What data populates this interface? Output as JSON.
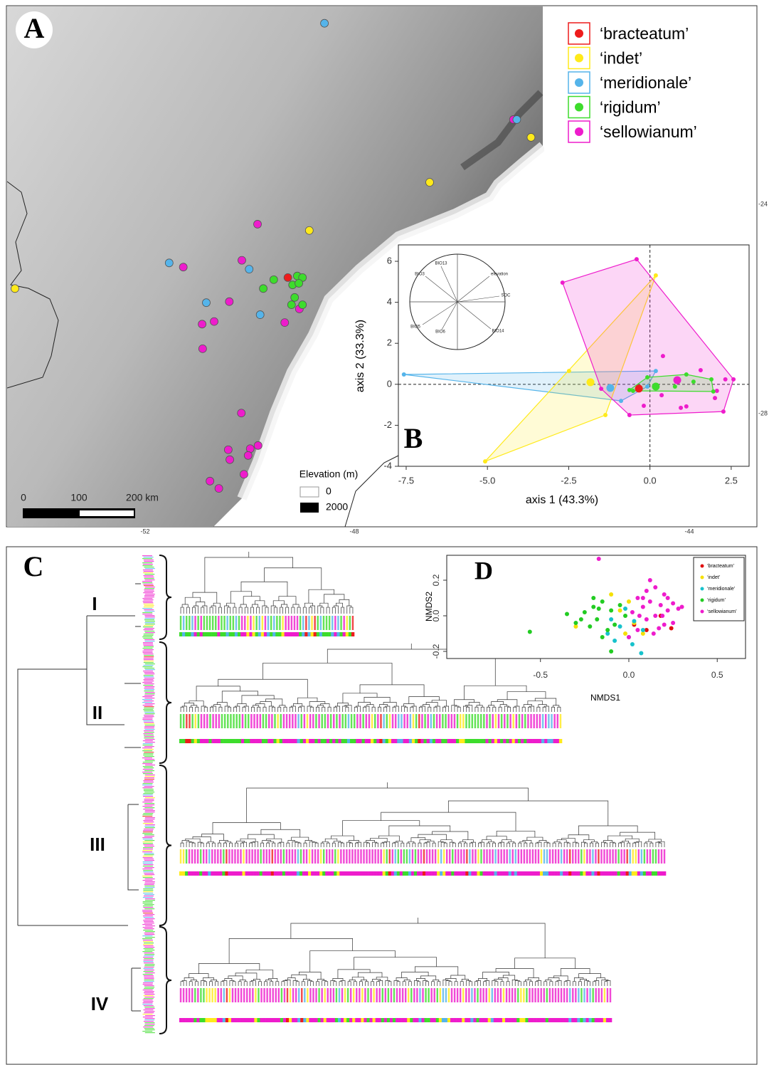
{
  "map": {
    "label": "A",
    "series": [
      {
        "name": "‘bracteatum’",
        "color": "#ee1c1c",
        "lon": [
          -49.27
        ],
        "lat": [
          -25.4
        ]
      },
      {
        "name": "‘indet’",
        "color": "#ffea1a",
        "lon": [
          -45.89,
          -47.1,
          -48.86,
          -54.49
        ],
        "lat": [
          -22.72,
          -23.58,
          -24.5,
          -25.61
        ]
      },
      {
        "name": "‘meridionale’",
        "color": "#55b4ea",
        "lon": [
          -48.57,
          -46.06,
          -51.54,
          -50.01,
          -50.83,
          -49.8
        ],
        "lat": [
          -20.54,
          -22.38,
          -25.12,
          -25.24,
          -25.88,
          -26.11
        ]
      },
      {
        "name": "‘rigidum’",
        "color": "#3ddc2c",
        "lon": [
          -49.54,
          -49.09,
          -48.99,
          -49.18,
          -49.06,
          -49.74,
          -49.14,
          -49.2,
          -48.99
        ],
        "lat": [
          -25.44,
          -25.37,
          -25.4,
          -25.54,
          -25.51,
          -25.61,
          -25.78,
          -25.92,
          -25.92
        ]
      },
      {
        "name": "‘sellowianum’",
        "color": "#ee1ccc",
        "lon": [
          -46.1,
          -49.85,
          -51.27,
          -50.15,
          -50.39,
          -50.68,
          -50.91,
          -49.33,
          -49.05,
          -50.9,
          -50.16,
          -50.41,
          -50.38,
          -49.99,
          -49.84,
          -50.03,
          -50.11,
          -50.76,
          -50.59
        ],
        "lat": [
          -22.38,
          -24.38,
          -25.2,
          -25.07,
          -25.86,
          -26.24,
          -26.29,
          -26.26,
          -26.0,
          -26.76,
          -27.99,
          -28.69,
          -28.88,
          -28.67,
          -28.61,
          -28.8,
          -29.16,
          -29.29,
          -29.43
        ]
      }
    ],
    "scale_labels": [
      "0",
      "100",
      "200 km"
    ],
    "elevation_title": "Elevation (m)",
    "elevation_labels": [
      "0",
      "2000"
    ],
    "lat_ticks": [
      -24,
      -28
    ],
    "lon_ticks": [
      -52,
      -48,
      -44
    ]
  },
  "chart_data": [
    {
      "type": "scatter",
      "label": "B",
      "xlabel": "axis 1 (43.3%)",
      "ylabel": "axis 2 (33.3%)",
      "xlim": [
        -7.74,
        3.05
      ],
      "ylim": [
        -4,
        6.8
      ],
      "xticks": [
        -7.5,
        {
          "value": -5,
          "label": "-5.0"
        },
        -2.5,
        {
          "value": 0,
          "label": "0.0"
        },
        2.5
      ],
      "yticks": [
        -4,
        -2,
        0,
        2,
        4,
        6
      ],
      "biplot_labels": [
        "BIO13",
        "BIO3",
        "elevation",
        "SOC",
        "BIO5",
        "BIO6",
        "BIO14"
      ],
      "series": [
        {
          "name": "‘meridionale’",
          "color": "#55b4ea",
          "x": [
            -7.57,
            0.18,
            -0.89,
            -0.37,
            -0.08
          ],
          "y": [
            0.48,
            0.65,
            -0.81,
            -0.28,
            -0.11
          ],
          "centroid": [
            -1.22,
            -0.18
          ]
        },
        {
          "name": "‘indet’",
          "color": "#ffea1a",
          "x": [
            0.18,
            -5.07,
            -1.37,
            -2.49
          ],
          "y": [
            5.31,
            -3.76,
            -1.5,
            0.65
          ],
          "centroid": [
            -1.83,
            0.1
          ]
        },
        {
          "name": "‘sellowianum’",
          "color": "#ee1ccc",
          "x": [
            -0.41,
            -2.69,
            2.57,
            2.26,
            -0.63,
            0.4,
            -1.5,
            0.95,
            1.12,
            2.32,
            2.06,
            0.36,
            -0.19,
            1.56,
            2.0
          ],
          "y": [
            6.1,
            4.96,
            0.24,
            -1.33,
            -1.5,
            1.38,
            -0.22,
            -1.15,
            -1.08,
            0.24,
            -0.32,
            -0.53,
            -1.05,
            0.69,
            -0.67
          ],
          "centroid": [
            0.84,
            0.2
          ]
        },
        {
          "name": "‘rigidum’",
          "color": "#3ddc2c",
          "x": [
            1.89,
            0.18,
            1.12,
            0.77,
            1.34,
            -0.52,
            -0.08,
            -0.63,
            1.95
          ],
          "y": [
            0.24,
            -0.11,
            0.48,
            -0.11,
            0.13,
            -0.32,
            0.34,
            -0.28,
            -0.35
          ],
          "centroid": [
            0.18,
            -0.11
          ]
        },
        {
          "name": "‘bracteatum’",
          "color": "#ee1c1c",
          "x": [],
          "y": [],
          "centroid": [
            -0.34,
            -0.21
          ]
        }
      ]
    },
    {
      "type": "scatter",
      "label": "D",
      "xlabel": "NMDS1",
      "ylabel": "NMDS2",
      "xlim": [
        -1.03,
        0.66
      ],
      "ylim": [
        -0.24,
        0.34
      ],
      "xticks": [
        -0.5,
        {
          "value": 0,
          "label": "0.0"
        },
        0.5
      ],
      "yticks": [
        -0.2,
        {
          "value": 0,
          "label": "0.0"
        },
        0.2
      ],
      "legend": "upper right",
      "series": [
        {
          "name": "‘bracteatum’",
          "color": "#e01010",
          "x": [
            0.03,
            0.1,
            0.18,
            0.24
          ],
          "y": [
            -0.05,
            -0.08,
            0.0,
            -0.07
          ]
        },
        {
          "name": "‘indet’",
          "color": "#f5e000",
          "x": [
            -0.3,
            -0.1,
            -0.05,
            0.0,
            0.03,
            -0.02,
            0.08
          ],
          "y": [
            -0.06,
            0.12,
            0.03,
            0.08,
            -0.04,
            -0.1,
            -0.1
          ]
        },
        {
          "name": "‘meridionale’",
          "color": "#17c2cc",
          "x": [
            -0.12,
            -0.08,
            -0.05,
            0.0,
            0.03,
            -0.1,
            0.07,
            -0.02,
            0.08,
            0.02
          ],
          "y": [
            -0.1,
            -0.14,
            -0.06,
            -0.12,
            -0.03,
            -0.02,
            -0.21,
            0.04,
            -0.08,
            -0.16
          ]
        },
        {
          "name": "‘rigidum’",
          "color": "#22cc22",
          "x": [
            -0.56,
            -0.35,
            -0.3,
            -0.25,
            -0.22,
            -0.2,
            -0.18,
            -0.15,
            -0.12,
            -0.1,
            -0.08,
            -0.05,
            -0.2,
            -0.15,
            -0.27,
            -0.1,
            -0.02,
            -0.17
          ],
          "y": [
            -0.09,
            0.01,
            -0.04,
            0.02,
            -0.06,
            0.05,
            -0.02,
            0.08,
            -0.08,
            0.03,
            -0.05,
            0.06,
            0.1,
            -0.12,
            -0.02,
            -0.2,
            0.0,
            0.04
          ]
        },
        {
          "name": "‘sellowianum’",
          "color": "#ee1ccc",
          "x": [
            -0.17,
            0.05,
            0.08,
            0.1,
            0.12,
            0.15,
            0.18,
            0.2,
            0.22,
            0.25,
            0.28,
            0.05,
            0.1,
            0.14,
            0.2,
            0.25,
            0.02,
            0.12,
            0.17,
            0.08,
            0.22,
            0.0,
            0.3,
            0.15,
            0.06,
            0.19
          ],
          "y": [
            0.32,
            0.1,
            0.05,
            -0.02,
            0.08,
            0.0,
            0.06,
            -0.05,
            0.03,
            0.07,
            0.04,
            -0.08,
            0.14,
            -0.1,
            0.12,
            -0.04,
            0.02,
            0.2,
            -0.07,
            0.1,
            0.1,
            -0.12,
            0.05,
            0.16,
            0.0,
            0.0
          ]
        }
      ]
    }
  ],
  "dendrogram": {
    "label": "C",
    "clusters": [
      "I",
      "II",
      "III",
      "IV"
    ]
  }
}
